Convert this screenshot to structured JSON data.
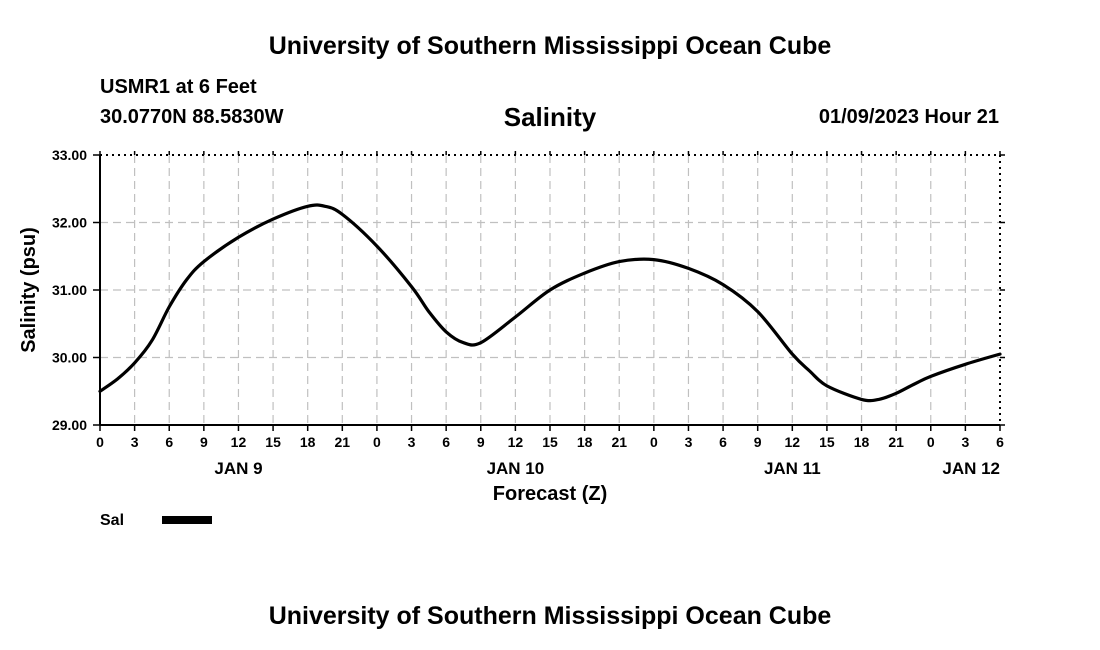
{
  "page": {
    "title_top": "University of Southern Mississippi Ocean Cube",
    "title_bottom": "University of Southern Mississippi Ocean Cube",
    "station": "USMR1 at 6 Feet",
    "coordinates": "30.0770N  88.5830W",
    "variable": "Salinity",
    "timestamp": "01/09/2023 Hour 21"
  },
  "chart_data": {
    "type": "line",
    "title": "Salinity",
    "xlabel": "Forecast (Z)",
    "ylabel": "Salinity (psu)",
    "x_unit": "hours since JAN 9 00Z",
    "xlim": [
      0,
      78
    ],
    "ylim": [
      29.0,
      33.0
    ],
    "y_ticks": [
      "29.00",
      "30.00",
      "31.00",
      "32.00",
      "33.00"
    ],
    "x_tick_labels": [
      "0",
      "3",
      "6",
      "9",
      "12",
      "15",
      "18",
      "21",
      "0",
      "3",
      "6",
      "9",
      "12",
      "15",
      "18",
      "21",
      "0",
      "3",
      "6",
      "9",
      "12",
      "15",
      "18",
      "21",
      "0",
      "3",
      "6"
    ],
    "date_labels": [
      {
        "label": "JAN 9",
        "hour": 12
      },
      {
        "label": "JAN 10",
        "hour": 36
      },
      {
        "label": "JAN 11",
        "hour": 60
      },
      {
        "label": "JAN 12",
        "hour": 78
      }
    ],
    "grid": true,
    "series": [
      {
        "name": "Sal",
        "color": "#000000",
        "x": [
          0,
          1.5,
          3,
          4.5,
          6,
          7.5,
          9,
          12,
          15,
          18,
          19.5,
          21,
          24,
          27,
          28.5,
          30,
          31.5,
          33,
          36,
          39,
          42,
          45,
          48,
          51,
          54,
          57,
          60,
          61.5,
          63,
          66,
          67.5,
          69,
          70.5,
          72,
          75,
          78
        ],
        "values": [
          29.5,
          29.68,
          29.92,
          30.25,
          30.75,
          31.15,
          31.42,
          31.78,
          32.05,
          32.24,
          32.24,
          32.12,
          31.65,
          31.05,
          30.68,
          30.38,
          30.22,
          30.22,
          30.6,
          31.0,
          31.25,
          31.42,
          31.45,
          31.32,
          31.08,
          30.68,
          30.05,
          29.8,
          29.58,
          29.38,
          29.38,
          29.47,
          29.6,
          29.72,
          29.9,
          30.05
        ]
      }
    ]
  },
  "legend": {
    "label": "Sal",
    "color": "#000000"
  }
}
